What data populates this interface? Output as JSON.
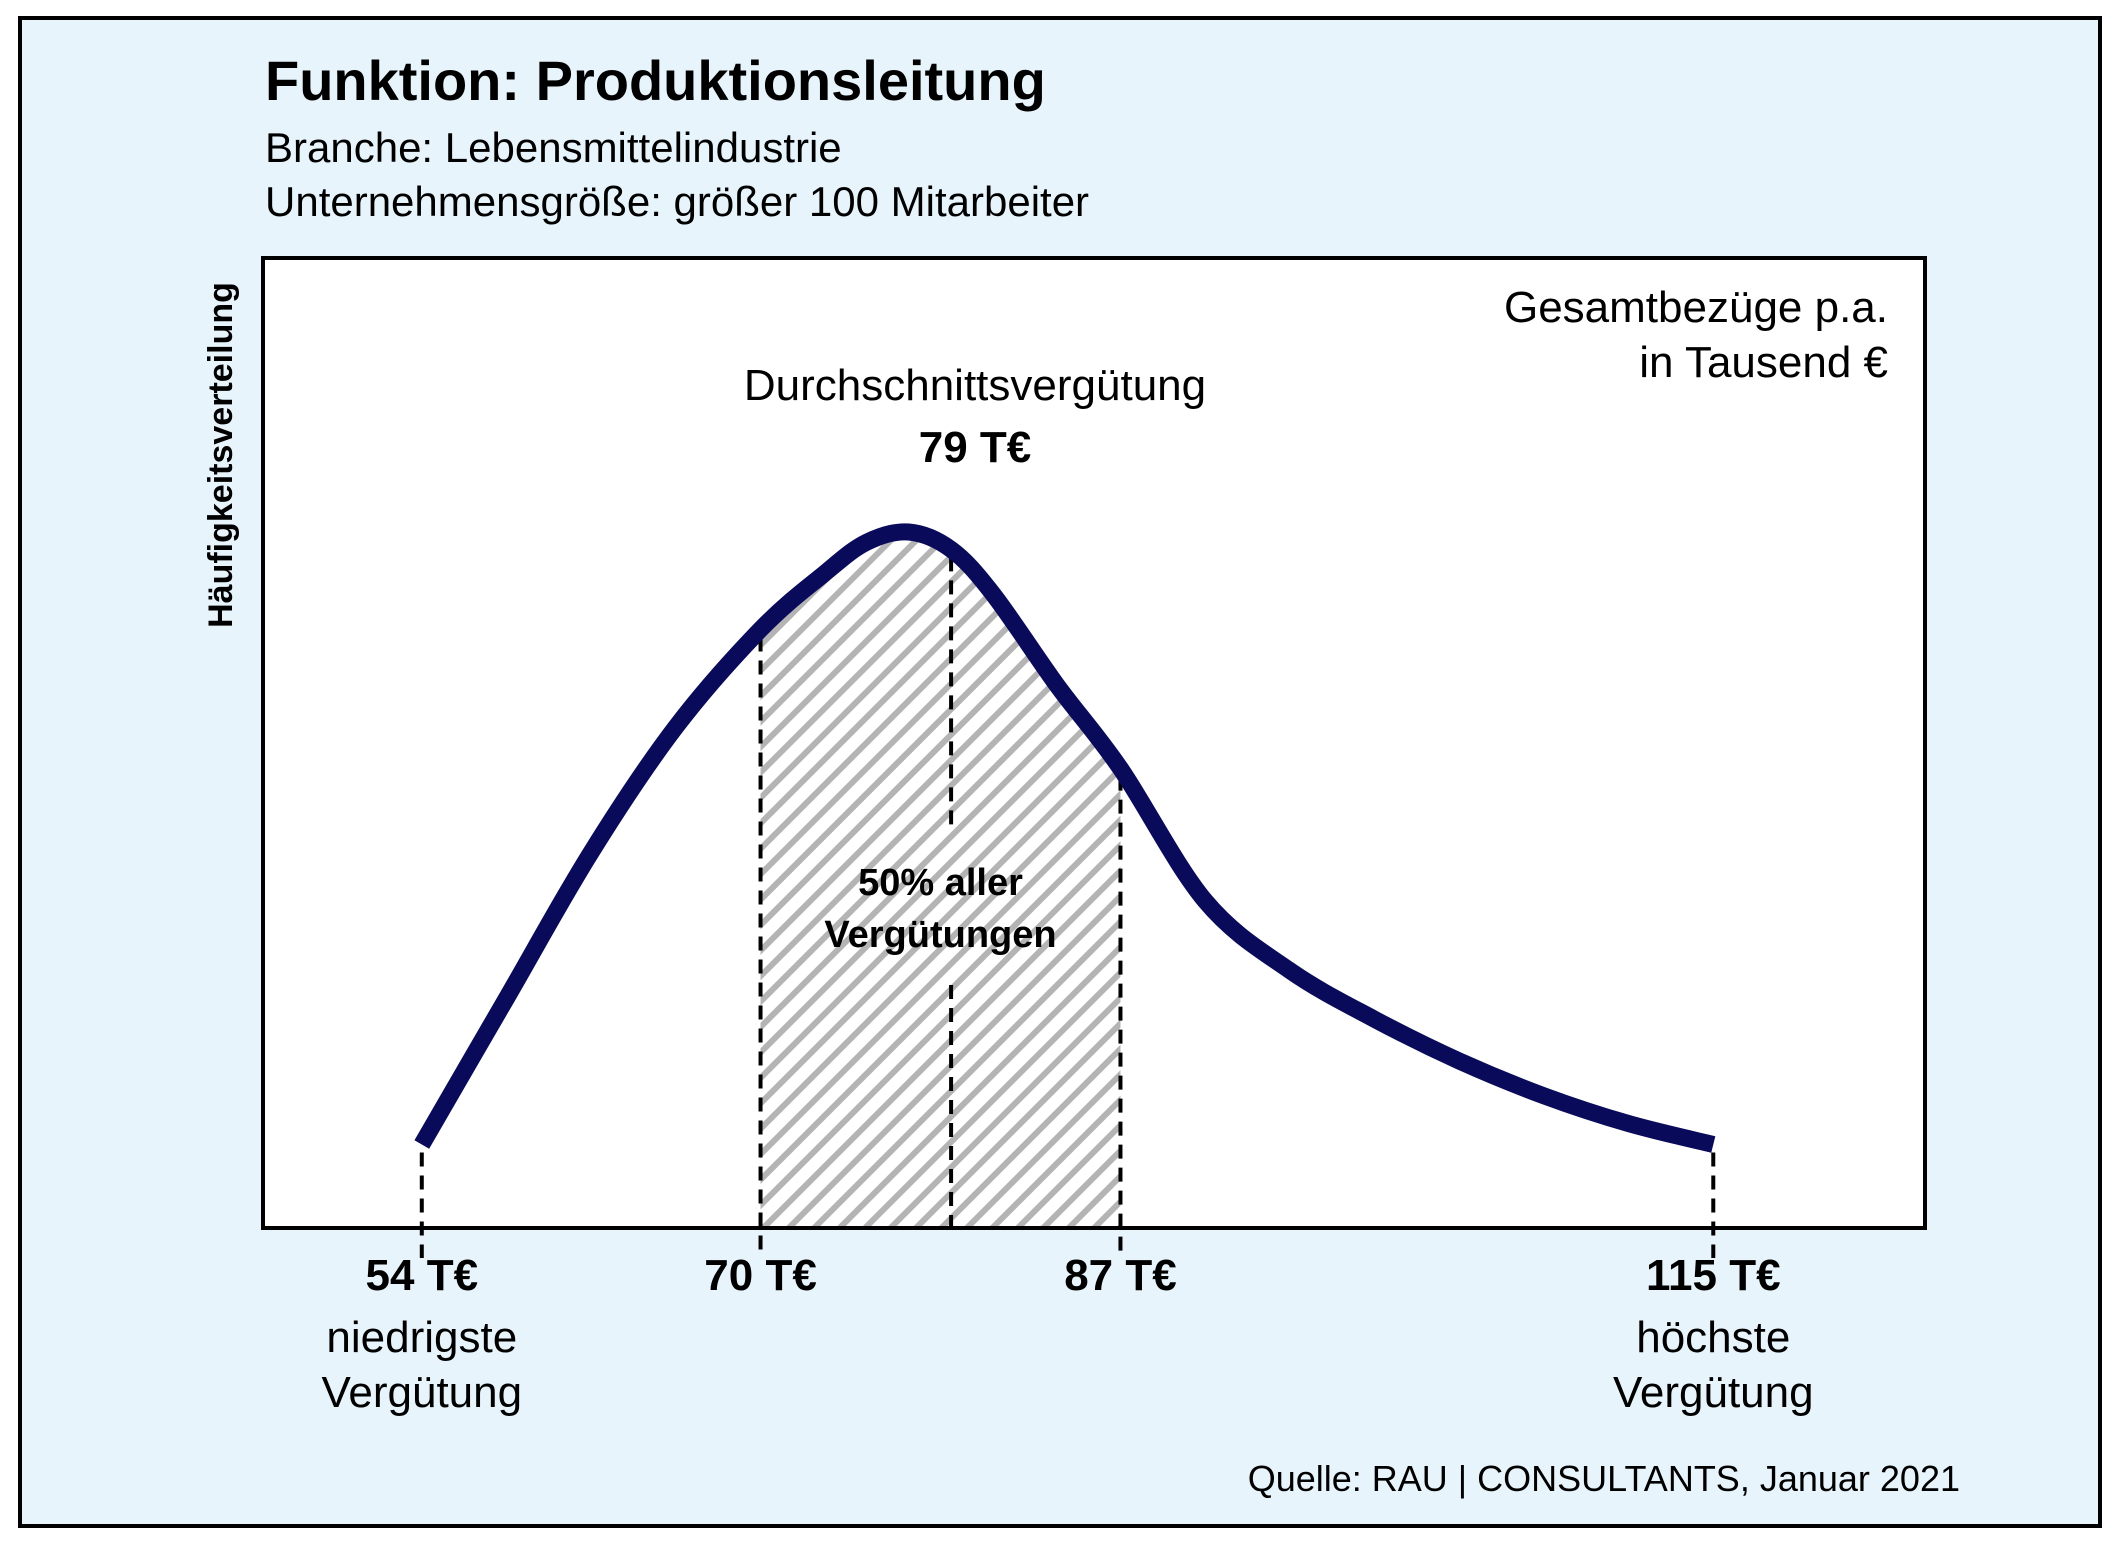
{
  "title": "Funktion: Produktionsleitung",
  "subtitles": [
    "Branche: Lebensmittelindustrie",
    "Unternehmensgröße: größer 100 Mitarbeiter"
  ],
  "source": "Quelle: RAU | CONSULTANTS, Januar 2021",
  "colors": {
    "background": "#e8f4fc",
    "plot_background": "#ffffff",
    "curve": "#0a0a5a",
    "hatch": "#b4b4b4",
    "frame": "#000000"
  },
  "chart_data": {
    "type": "area",
    "ylabel": "Häufigkeitsverteilung",
    "units_label": [
      "Gesamtbezüge p.a.",
      "in Tausend €"
    ],
    "xlim": [
      46.5,
      125
    ],
    "ylim": [
      0,
      1
    ],
    "curve": {
      "x": [
        54,
        58,
        62,
        66,
        70,
        73,
        75,
        77,
        79,
        81,
        84,
        87,
        91,
        95,
        99,
        103,
        107,
        111,
        115
      ],
      "y": [
        0.12,
        0.33,
        0.54,
        0.72,
        0.86,
        0.94,
        0.985,
        1.0,
        0.975,
        0.91,
        0.78,
        0.66,
        0.47,
        0.37,
        0.3,
        0.24,
        0.19,
        0.15,
        0.12
      ]
    },
    "shaded_range": [
      70,
      87
    ],
    "shaded_label": [
      "50% aller",
      "Vergütungen"
    ],
    "average": {
      "label": "Durchschnittsvergütung",
      "value": 79,
      "value_label": "79 T€"
    },
    "markers": [
      {
        "value": 54,
        "label": "54 T€",
        "caption": [
          "niedrigste",
          "Vergütung"
        ]
      },
      {
        "value": 70,
        "label": "70 T€",
        "caption": []
      },
      {
        "value": 87,
        "label": "87 T€",
        "caption": []
      },
      {
        "value": 115,
        "label": "115 T€",
        "caption": [
          "höchste",
          "Vergütung"
        ]
      }
    ]
  }
}
